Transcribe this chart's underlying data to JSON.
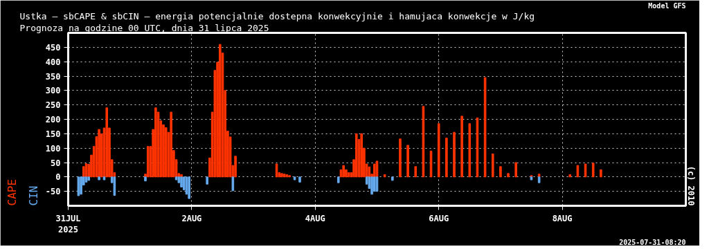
{
  "chart_data": {
    "type": "bar",
    "title": "Ustka – sbCAPE & sbCIN – energia potencjalnie dostepna konwekcyjnie i hamujaca konwekcje w J/kg",
    "subtitle": "Prognoza na godzine 00 UTC, dnia 31 lipca 2025",
    "annotations": [
      "Model GFS",
      "(c) 2010",
      "2025-07-31-08:20"
    ],
    "xlim": [
      "2025-07-31T00:00",
      "2025-08-10T00:00"
    ],
    "xticks": [
      {
        "value": "2025-07-31",
        "label": "31JUL\n2025"
      },
      {
        "value": "2025-08-02",
        "label": "2AUG"
      },
      {
        "value": "2025-08-04",
        "label": "4AUG"
      },
      {
        "value": "2025-08-06",
        "label": "6AUG"
      },
      {
        "value": "2025-08-08",
        "label": "8AUG"
      }
    ],
    "ylim": [
      -100,
      500
    ],
    "yticks": [
      -50,
      0,
      50,
      100,
      150,
      200,
      250,
      300,
      350,
      400,
      450
    ],
    "grid": true,
    "legend": "left",
    "series": [
      {
        "name": "CAPE",
        "color": "#ff3300",
        "x": [
          "2025-07-31T06:00",
          "2025-07-31T07:00",
          "2025-07-31T08:00",
          "2025-07-31T09:00",
          "2025-07-31T10:00",
          "2025-07-31T11:00",
          "2025-07-31T12:00",
          "2025-07-31T13:00",
          "2025-07-31T14:00",
          "2025-07-31T15:00",
          "2025-07-31T16:00",
          "2025-07-31T17:00",
          "2025-07-31T18:00",
          "2025-08-01T06:00",
          "2025-08-01T07:00",
          "2025-08-01T08:00",
          "2025-08-01T09:00",
          "2025-08-01T10:00",
          "2025-08-01T11:00",
          "2025-08-01T12:00",
          "2025-08-01T13:00",
          "2025-08-01T14:00",
          "2025-08-01T15:00",
          "2025-08-01T16:00",
          "2025-08-01T17:00",
          "2025-08-01T18:00",
          "2025-08-01T19:00",
          "2025-08-01T20:00",
          "2025-08-02T07:00",
          "2025-08-02T08:00",
          "2025-08-02T09:00",
          "2025-08-02T10:00",
          "2025-08-02T11:00",
          "2025-08-02T12:00",
          "2025-08-02T13:00",
          "2025-08-02T14:00",
          "2025-08-02T15:00",
          "2025-08-02T16:00",
          "2025-08-02T17:00",
          "2025-08-03T09:00",
          "2025-08-03T10:00",
          "2025-08-03T11:00",
          "2025-08-03T12:00",
          "2025-08-03T13:00",
          "2025-08-03T14:00",
          "2025-08-04T10:00",
          "2025-08-04T11:00",
          "2025-08-04T12:00",
          "2025-08-04T13:00",
          "2025-08-04T14:00",
          "2025-08-04T15:00",
          "2025-08-04T16:00",
          "2025-08-04T17:00",
          "2025-08-04T18:00",
          "2025-08-04T19:00",
          "2025-08-04T20:00",
          "2025-08-04T21:00",
          "2025-08-04T22:00",
          "2025-08-04T23:00",
          "2025-08-05T00:00",
          "2025-08-05T03:00",
          "2025-08-05T09:00",
          "2025-08-05T12:00",
          "2025-08-05T15:00",
          "2025-08-05T18:00",
          "2025-08-05T21:00",
          "2025-08-06T00:00",
          "2025-08-06T03:00",
          "2025-08-06T06:00",
          "2025-08-06T09:00",
          "2025-08-06T12:00",
          "2025-08-06T15:00",
          "2025-08-06T18:00",
          "2025-08-06T21:00",
          "2025-08-07T00:00",
          "2025-08-07T03:00",
          "2025-08-07T06:00",
          "2025-08-07T12:00",
          "2025-08-07T15:00",
          "2025-08-08T03:00",
          "2025-08-08T06:00",
          "2025-08-08T09:00",
          "2025-08-08T12:00",
          "2025-08-08T15:00"
        ],
        "values": [
          36,
          46,
          44,
          76,
          106,
          140,
          165,
          150,
          170,
          240,
          170,
          60,
          15,
          10,
          106,
          106,
          165,
          240,
          225,
          195,
          181,
          171,
          155,
          225,
          92,
          60,
          12,
          8,
          66,
          225,
          370,
          398,
          460,
          430,
          300,
          159,
          139,
          40,
          72,
          45,
          15,
          12,
          10,
          8,
          5,
          25,
          40,
          25,
          15,
          15,
          60,
          150,
          130,
          150,
          100,
          45,
          35,
          10,
          45,
          55,
          8,
          132,
          110,
          36,
          245,
          90,
          185,
          135,
          155,
          211,
          185,
          205,
          345,
          80,
          36,
          12,
          50,
          5,
          10,
          8,
          40,
          45,
          48,
          25
        ]
      },
      {
        "name": "CIN",
        "color": "#66aaee",
        "x": [
          "2025-07-31T04:00",
          "2025-07-31T05:00",
          "2025-07-31T06:00",
          "2025-07-31T07:00",
          "2025-07-31T08:00",
          "2025-07-31T12:00",
          "2025-07-31T14:00",
          "2025-07-31T17:00",
          "2025-07-31T18:00",
          "2025-08-01T06:00",
          "2025-08-01T18:00",
          "2025-08-01T19:00",
          "2025-08-01T20:00",
          "2025-08-01T21:00",
          "2025-08-01T22:00",
          "2025-08-01T23:00",
          "2025-08-02T06:00",
          "2025-08-02T16:00",
          "2025-08-03T16:00",
          "2025-08-03T18:00",
          "2025-08-04T09:00",
          "2025-08-04T20:00",
          "2025-08-04T21:00",
          "2025-08-04T22:00",
          "2025-08-04T23:00",
          "2025-08-05T00:00",
          "2025-08-05T06:00",
          "2025-08-07T12:00",
          "2025-08-07T15:00"
        ],
        "values": [
          -65,
          -60,
          -28,
          -18,
          -12,
          -10,
          -10,
          -20,
          -64,
          -14,
          -10,
          -20,
          -35,
          -45,
          -60,
          -75,
          -25,
          -48,
          -10,
          -18,
          -20,
          -25,
          -40,
          -60,
          -50,
          -50,
          -12,
          -10,
          -20
        ]
      }
    ]
  }
}
